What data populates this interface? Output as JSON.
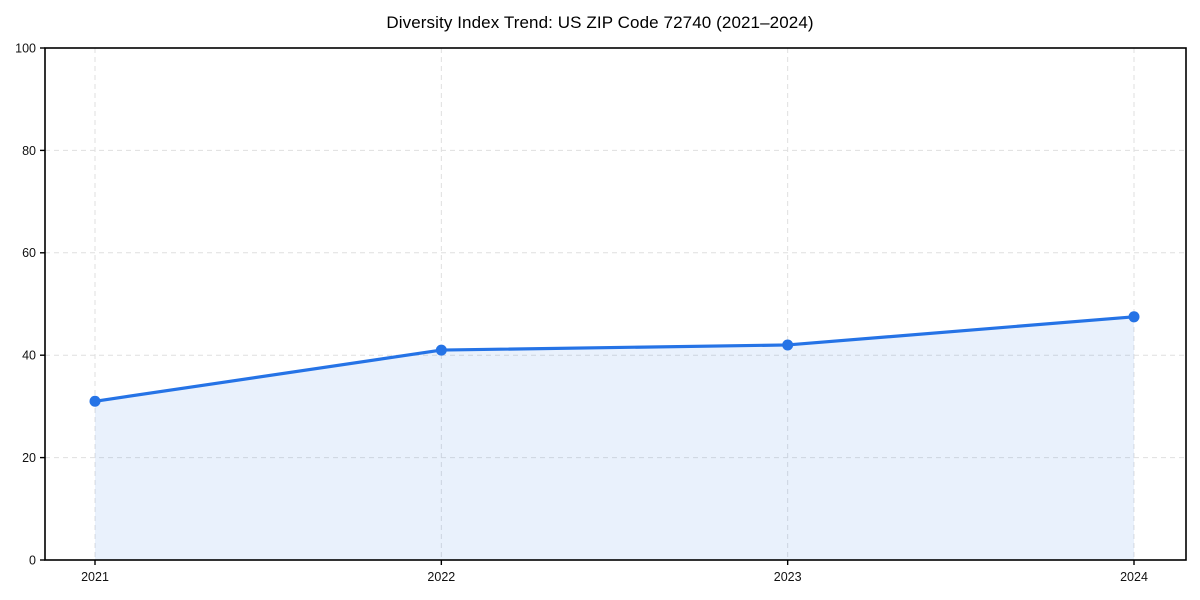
{
  "chart_data": {
    "type": "line",
    "title": "Diversity Index Trend: US ZIP Code 72740 (2021–2024)",
    "categories": [
      "2021",
      "2022",
      "2023",
      "2024"
    ],
    "series": [
      {
        "name": "Diversity Index",
        "values": [
          31,
          41,
          42,
          47.5
        ]
      }
    ],
    "xlabel": "",
    "ylabel": "",
    "ylim": [
      0,
      100
    ],
    "yticks": [
      0,
      20,
      40,
      60,
      80,
      100
    ],
    "grid": true,
    "grid_style": "dashed",
    "legend": false,
    "area_fill": true,
    "fill_opacity": 0.1,
    "marker": "circle",
    "colors": {
      "line": "#2573E6",
      "marker": "#2573E6",
      "grid": "#DFDFDF",
      "axis": "#000000",
      "tick_text": "#111111",
      "title_text": "#000000",
      "background": "#FFFFFF"
    }
  }
}
